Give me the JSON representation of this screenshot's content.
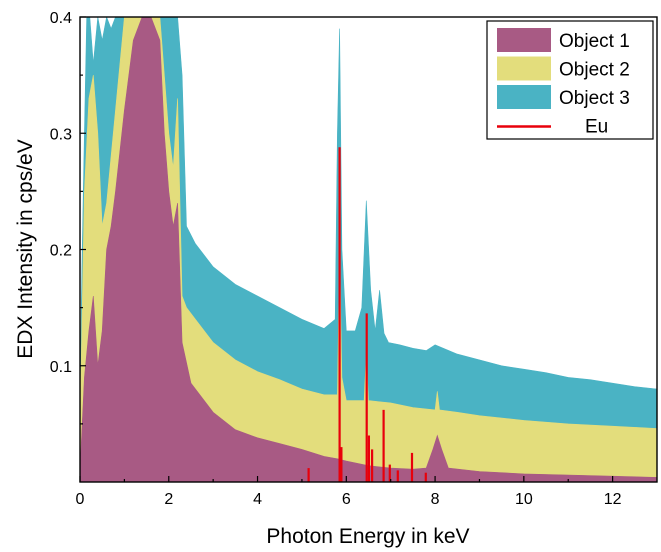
{
  "chart_data": {
    "type": "area",
    "xlabel": "Photon Energy in keV",
    "ylabel": "EDX Intensity in cps/eV",
    "xlim": [
      0,
      13
    ],
    "ylim": [
      0,
      0.4
    ],
    "x_ticks": [
      0,
      2,
      4,
      6,
      8,
      10,
      12
    ],
    "y_ticks": [
      0.1,
      0.2,
      0.3,
      0.4
    ],
    "x_tick_labels": [
      "0",
      "2",
      "4",
      "6",
      "8",
      "10",
      "12"
    ],
    "y_tick_labels": [
      "0.1",
      "0.2",
      "0.3",
      "0.4"
    ],
    "grid": false,
    "legend_position": "top-right",
    "series": [
      {
        "name": "Object 3",
        "color": "#4ab3c4",
        "x": [
          0.0,
          0.05,
          0.1,
          0.15,
          0.22,
          0.3,
          0.4,
          0.5,
          0.6,
          0.7,
          0.8,
          0.9,
          1.0,
          1.1,
          1.2,
          1.3,
          1.4,
          1.5,
          1.6,
          1.7,
          1.8,
          1.9,
          2.0,
          2.1,
          2.2,
          2.3,
          2.4,
          2.6,
          2.8,
          3.0,
          3.5,
          4.0,
          4.5,
          5.0,
          5.5,
          5.75,
          5.8,
          5.85,
          5.9,
          6.0,
          6.2,
          6.35,
          6.45,
          6.55,
          6.65,
          6.75,
          6.85,
          6.95,
          7.2,
          7.5,
          7.8,
          8.0,
          8.5,
          9.0,
          9.5,
          10.0,
          10.5,
          11.0,
          11.5,
          12.0,
          12.5,
          13.0
        ],
        "y": [
          0.08,
          0.2,
          0.3,
          0.4,
          0.4,
          0.36,
          0.4,
          0.38,
          0.4,
          0.39,
          0.4,
          0.4,
          0.4,
          0.4,
          0.4,
          0.4,
          0.4,
          0.4,
          0.4,
          0.4,
          0.4,
          0.4,
          0.4,
          0.4,
          0.4,
          0.35,
          0.22,
          0.205,
          0.195,
          0.185,
          0.17,
          0.16,
          0.15,
          0.14,
          0.132,
          0.14,
          0.3,
          0.39,
          0.2,
          0.13,
          0.13,
          0.15,
          0.242,
          0.165,
          0.13,
          0.165,
          0.128,
          0.12,
          0.118,
          0.115,
          0.113,
          0.118,
          0.11,
          0.105,
          0.1,
          0.097,
          0.094,
          0.09,
          0.088,
          0.085,
          0.082,
          0.08
        ]
      },
      {
        "name": "Object 2",
        "color": "#e3dd7c",
        "x": [
          0.0,
          0.05,
          0.1,
          0.2,
          0.3,
          0.4,
          0.5,
          0.6,
          0.8,
          1.0,
          1.2,
          1.4,
          1.6,
          1.8,
          2.0,
          2.1,
          2.2,
          2.3,
          2.4,
          2.6,
          2.8,
          3.0,
          3.5,
          4.0,
          4.5,
          5.0,
          5.5,
          5.8,
          5.85,
          5.9,
          6.0,
          6.4,
          6.45,
          6.5,
          7.0,
          7.5,
          8.0,
          8.05,
          8.1,
          8.5,
          9.0,
          10.0,
          11.0,
          12.0,
          13.0
        ],
        "y": [
          0.05,
          0.15,
          0.25,
          0.33,
          0.35,
          0.3,
          0.22,
          0.24,
          0.32,
          0.4,
          0.4,
          0.4,
          0.4,
          0.4,
          0.3,
          0.27,
          0.33,
          0.16,
          0.15,
          0.14,
          0.13,
          0.12,
          0.105,
          0.095,
          0.088,
          0.08,
          0.075,
          0.075,
          0.2,
          0.09,
          0.07,
          0.07,
          0.11,
          0.07,
          0.068,
          0.064,
          0.062,
          0.078,
          0.062,
          0.06,
          0.057,
          0.053,
          0.05,
          0.048,
          0.046
        ]
      },
      {
        "name": "Object 1",
        "color": "#a85a84",
        "x": [
          0.0,
          0.05,
          0.1,
          0.2,
          0.3,
          0.4,
          0.5,
          0.6,
          0.7,
          0.8,
          1.0,
          1.2,
          1.4,
          1.5,
          1.6,
          1.8,
          1.9,
          2.0,
          2.1,
          2.2,
          2.3,
          2.5,
          3.0,
          3.5,
          4.0,
          4.5,
          5.0,
          5.5,
          5.8,
          6.0,
          6.5,
          7.0,
          7.5,
          7.8,
          7.95,
          8.05,
          8.15,
          8.3,
          9.0,
          10.0,
          11.0,
          12.0,
          13.0
        ],
        "y": [
          0.01,
          0.05,
          0.09,
          0.13,
          0.16,
          0.1,
          0.13,
          0.2,
          0.22,
          0.25,
          0.32,
          0.38,
          0.4,
          0.4,
          0.4,
          0.38,
          0.3,
          0.25,
          0.22,
          0.24,
          0.12,
          0.085,
          0.06,
          0.045,
          0.038,
          0.033,
          0.028,
          0.022,
          0.02,
          0.018,
          0.014,
          0.012,
          0.011,
          0.012,
          0.028,
          0.04,
          0.028,
          0.012,
          0.009,
          0.007,
          0.006,
          0.005,
          0.004
        ]
      }
    ],
    "reference_lines": {
      "name": "Eu",
      "color": "#e8000b",
      "x": [
        5.15,
        5.85,
        5.89,
        6.46,
        6.51,
        6.58,
        6.84,
        6.98,
        7.16,
        7.48,
        7.79
      ],
      "y": [
        0.012,
        0.288,
        0.03,
        0.145,
        0.04,
        0.028,
        0.062,
        0.015,
        0.01,
        0.025,
        0.008
      ]
    },
    "legend_entries": [
      {
        "label": "Object 1",
        "color": "#a85a84",
        "kind": "patch"
      },
      {
        "label": "Object 2",
        "color": "#e3dd7c",
        "kind": "patch"
      },
      {
        "label": "Object 3",
        "color": "#4ab3c4",
        "kind": "patch"
      },
      {
        "label": "Eu",
        "color": "#e8000b",
        "kind": "line"
      }
    ]
  }
}
